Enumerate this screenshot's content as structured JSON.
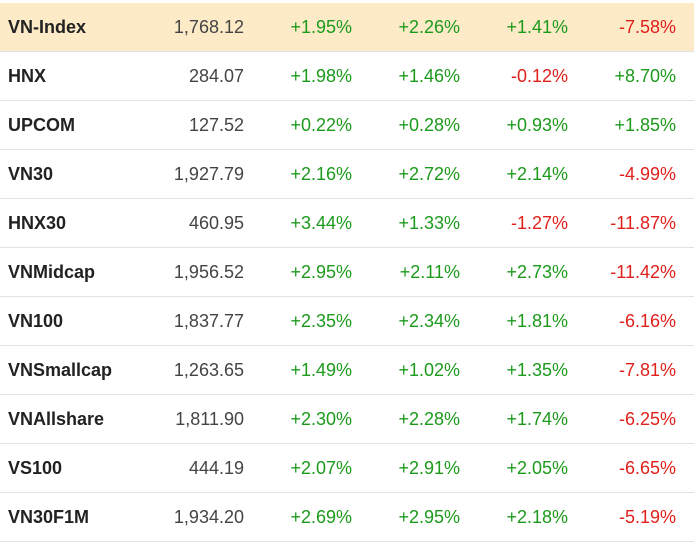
{
  "table": {
    "rows": [
      [
        "VN-Index",
        "1,768.12",
        "+1.95%",
        "+2.26%",
        "+1.41%",
        "-7.58%"
      ],
      [
        "HNX",
        "284.07",
        "+1.98%",
        "+1.46%",
        "-0.12%",
        "+8.70%"
      ],
      [
        "UPCOM",
        "127.52",
        "+0.22%",
        "+0.28%",
        "+0.93%",
        "+1.85%"
      ],
      [
        "VN30",
        "1,927.79",
        "+2.16%",
        "+2.72%",
        "+2.14%",
        "-4.99%"
      ],
      [
        "HNX30",
        "460.95",
        "+3.44%",
        "+1.33%",
        "-1.27%",
        "-11.87%"
      ],
      [
        "VNMidcap",
        "1,956.52",
        "+2.95%",
        "+2.11%",
        "+2.73%",
        "-11.42%"
      ],
      [
        "VN100",
        "1,837.77",
        "+2.35%",
        "+2.34%",
        "+1.81%",
        "-6.16%"
      ],
      [
        "VNSmallcap",
        "1,263.65",
        "+1.49%",
        "+1.02%",
        "+1.35%",
        "-7.81%"
      ],
      [
        "VNAllshare",
        "1,811.90",
        "+2.30%",
        "+2.28%",
        "+1.74%",
        "-6.25%"
      ],
      [
        "VS100",
        "444.19",
        "+2.07%",
        "+2.91%",
        "+2.05%",
        "-6.65%"
      ],
      [
        "VN30F1M",
        "1,934.20",
        "+2.69%",
        "+2.95%",
        "+2.18%",
        "-5.19%"
      ]
    ]
  }
}
